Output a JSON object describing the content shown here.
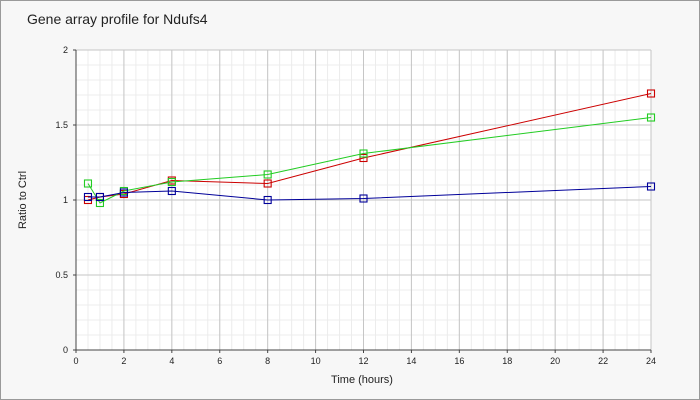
{
  "chart_data": {
    "type": "line",
    "title": "Gene array profile for Ndufs4",
    "xlabel": "Time (hours)",
    "ylabel": "Ratio to Ctrl",
    "xlim": [
      0,
      24
    ],
    "ylim": [
      0,
      2
    ],
    "x_ticks": [
      "0",
      "2",
      "4",
      "6",
      "8",
      "10",
      "12",
      "14",
      "16",
      "18",
      "20",
      "22",
      "24"
    ],
    "y_ticks": [
      "0",
      "0.5",
      "1",
      "1.5",
      "2"
    ],
    "grid": true,
    "legend": "none",
    "marker": "open-square",
    "series": [
      {
        "color": "#cc0000",
        "points": [
          [
            0.5,
            1.0
          ],
          [
            1,
            1.02
          ],
          [
            2,
            1.04
          ],
          [
            4,
            1.13
          ],
          [
            8,
            1.11
          ],
          [
            12,
            1.28
          ],
          [
            24,
            1.71
          ]
        ]
      },
      {
        "color": "#22cc22",
        "points": [
          [
            0.5,
            1.11
          ],
          [
            1,
            0.98
          ],
          [
            2,
            1.06
          ],
          [
            4,
            1.12
          ],
          [
            8,
            1.17
          ],
          [
            12,
            1.31
          ],
          [
            24,
            1.55
          ]
        ]
      },
      {
        "color": "#000099",
        "points": [
          [
            0.5,
            1.02
          ],
          [
            1,
            1.02
          ],
          [
            2,
            1.05
          ],
          [
            4,
            1.06
          ],
          [
            8,
            1.0
          ],
          [
            12,
            1.01
          ],
          [
            24,
            1.09
          ]
        ]
      }
    ]
  }
}
